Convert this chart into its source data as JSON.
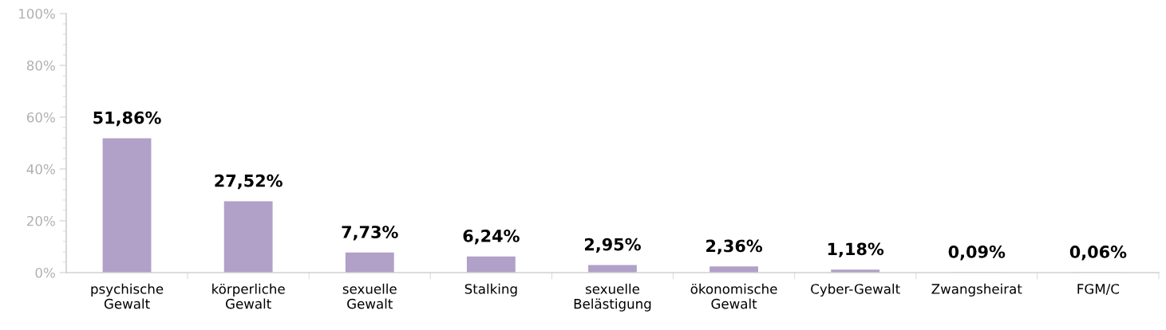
{
  "chart_data": {
    "type": "bar",
    "categories": [
      "psychische\nGewalt",
      "körperliche\nGewalt",
      "sexuelle\nGewalt",
      "Stalking",
      "sexuelle\nBelästigung",
      "ökonomische\nGewalt",
      "Cyber-Gewalt",
      "Zwangsheirat",
      "FGM/C"
    ],
    "values": [
      51.86,
      27.52,
      7.73,
      6.24,
      2.95,
      2.36,
      1.18,
      0.09,
      0.06
    ],
    "value_labels": [
      "51,86%",
      "27,52%",
      "7,73%",
      "6,24%",
      "2,95%",
      "2,36%",
      "1,18%",
      "0,09%",
      "0,06%"
    ],
    "color": "#b1a0c7",
    "ylim": [
      0,
      100
    ],
    "yticks": [
      {
        "value": 0,
        "label": "0%"
      },
      {
        "value": 20,
        "label": "20%"
      },
      {
        "value": 40,
        "label": "40%"
      },
      {
        "value": 60,
        "label": "60%"
      },
      {
        "value": 80,
        "label": "80%"
      },
      {
        "value": 100,
        "label": "100%"
      }
    ],
    "grid": false,
    "legend": false
  }
}
